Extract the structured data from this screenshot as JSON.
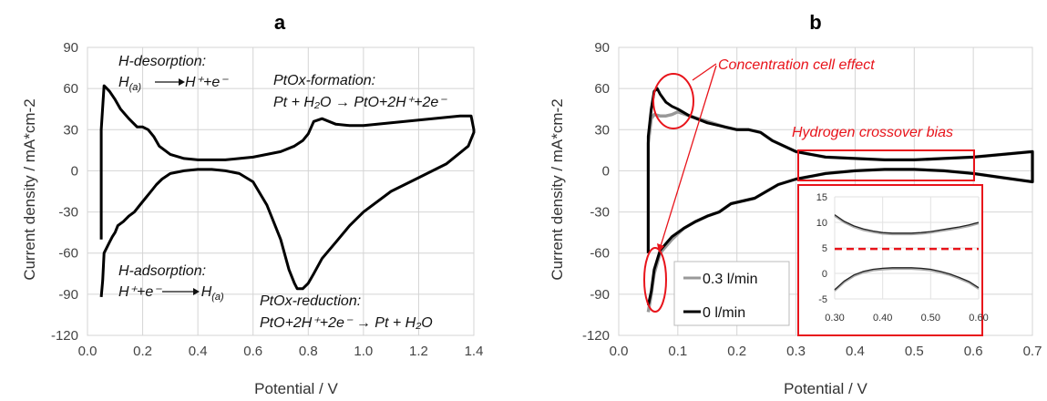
{
  "chart_data": [
    {
      "type": "line",
      "panel_label": "a",
      "xlabel": "Potential / V",
      "ylabel": "Current density / mA*cm-2",
      "xlim": [
        0.0,
        1.4
      ],
      "ylim": [
        -120,
        90
      ],
      "xticks": [
        "0.0",
        "0.2",
        "0.4",
        "0.6",
        "0.8",
        "1.0",
        "1.2",
        "1.4"
      ],
      "yticks": [
        "90",
        "60",
        "30",
        "0",
        "-30",
        "-60",
        "-90",
        "-120"
      ],
      "grid": true,
      "series": [
        {
          "color": "#000000",
          "x": [
            0.05,
            0.05,
            0.06,
            0.07,
            0.08,
            0.1,
            0.12,
            0.15,
            0.18,
            0.2,
            0.22,
            0.24,
            0.26,
            0.3,
            0.35,
            0.4,
            0.45,
            0.5,
            0.55,
            0.6,
            0.65,
            0.7,
            0.75,
            0.78,
            0.8,
            0.82,
            0.85,
            0.9,
            0.95,
            1.0,
            1.05,
            1.1,
            1.15,
            1.2,
            1.25,
            1.3,
            1.35,
            1.39,
            1.4,
            1.4,
            1.38,
            1.3,
            1.2,
            1.1,
            1.0,
            0.95,
            0.9,
            0.85,
            0.82,
            0.8,
            0.78,
            0.76,
            0.75,
            0.73,
            0.7,
            0.65,
            0.6,
            0.55,
            0.5,
            0.45,
            0.4,
            0.35,
            0.3,
            0.27,
            0.25,
            0.23,
            0.21,
            0.19,
            0.17,
            0.15,
            0.13,
            0.11,
            0.1,
            0.09,
            0.08,
            0.07,
            0.06,
            0.055,
            0.05
          ],
          "y": [
            -50,
            30,
            62,
            60,
            58,
            52,
            45,
            38,
            32,
            32,
            30,
            25,
            18,
            12,
            9,
            8,
            8,
            8,
            9,
            10,
            12,
            14,
            18,
            22,
            27,
            36,
            38,
            34,
            33,
            33,
            34,
            35,
            36,
            37,
            38,
            39,
            40,
            40,
            30,
            28,
            18,
            5,
            -5,
            -15,
            -30,
            -40,
            -52,
            -64,
            -75,
            -82,
            -86,
            -86,
            -82,
            -72,
            -50,
            -25,
            -8,
            -2,
            0,
            1,
            1,
            0,
            -2,
            -6,
            -10,
            -15,
            -20,
            -25,
            -30,
            -33,
            -37,
            -40,
            -45,
            -48,
            -52,
            -56,
            -60,
            -80,
            -92
          ]
        }
      ],
      "annotations": {
        "h_desorption_title": "H-desorption:",
        "h_desorption_eq_left": "H",
        "h_desorption_eq_sub": "(a)",
        "h_desorption_eq_right": "H⁺+e⁻",
        "ptox_formation_title": "PtOx-formation:",
        "ptox_formation_eq": "Pt + H₂O → PtO+2H⁺+2e⁻",
        "h_adsorption_title": "H-adsorption:",
        "h_adsorption_eq_left": "H⁺+e⁻",
        "h_adsorption_eq_right": "H",
        "h_adsorption_eq_sub": "(a)",
        "ptox_reduction_title": "PtOx-reduction:",
        "ptox_reduction_eq": "PtO+2H⁺+2e⁻ → Pt + H₂O"
      }
    },
    {
      "type": "line",
      "panel_label": "b",
      "xlabel": "Potential / V",
      "ylabel": "Current density / mA*cm-2",
      "xlim": [
        0.0,
        0.7
      ],
      "ylim": [
        -120,
        90
      ],
      "xticks": [
        "0.0",
        "0.1",
        "0.2",
        "0.3",
        "0.4",
        "0.5",
        "0.6",
        "0.7"
      ],
      "yticks": [
        "90",
        "60",
        "30",
        "0",
        "-30",
        "-60",
        "-90",
        "-120"
      ],
      "grid": true,
      "legend": "bottom-left",
      "series": [
        {
          "name": "0.3 l/min",
          "color": "#999999",
          "x": [
            0.05,
            0.05,
            0.055,
            0.06,
            0.07,
            0.08,
            0.09,
            0.1,
            0.12,
            0.15,
            0.18,
            0.2,
            0.22,
            0.24,
            0.26,
            0.3,
            0.35,
            0.4,
            0.45,
            0.5,
            0.55,
            0.6,
            0.65,
            0.7,
            0.7,
            0.65,
            0.6,
            0.55,
            0.5,
            0.45,
            0.4,
            0.35,
            0.3,
            0.27,
            0.25,
            0.23,
            0.21,
            0.19,
            0.17,
            0.15,
            0.13,
            0.11,
            0.1,
            0.09,
            0.08,
            0.07,
            0.06,
            0.055,
            0.05
          ],
          "y": [
            -60,
            20,
            38,
            41,
            40,
            40,
            41,
            43,
            40,
            36,
            32,
            30,
            30,
            28,
            22,
            14,
            10,
            9,
            8,
            8,
            9,
            10,
            12,
            14,
            -8,
            -5,
            -2,
            0,
            1,
            1,
            0,
            -2,
            -6,
            -10,
            -15,
            -20,
            -22,
            -24,
            -30,
            -33,
            -37,
            -42,
            -46,
            -50,
            -55,
            -60,
            -75,
            -90,
            -103
          ]
        },
        {
          "name": "0 l/min",
          "color": "#000000",
          "x": [
            0.05,
            0.05,
            0.055,
            0.06,
            0.065,
            0.07,
            0.08,
            0.09,
            0.1,
            0.12,
            0.15,
            0.18,
            0.2,
            0.22,
            0.24,
            0.26,
            0.3,
            0.35,
            0.4,
            0.45,
            0.5,
            0.55,
            0.6,
            0.65,
            0.7,
            0.7,
            0.65,
            0.6,
            0.55,
            0.5,
            0.45,
            0.4,
            0.35,
            0.3,
            0.27,
            0.25,
            0.23,
            0.21,
            0.19,
            0.17,
            0.15,
            0.13,
            0.11,
            0.1,
            0.09,
            0.08,
            0.07,
            0.06,
            0.055,
            0.05
          ],
          "y": [
            -60,
            25,
            45,
            58,
            60,
            56,
            50,
            47,
            45,
            40,
            35,
            32,
            30,
            30,
            28,
            22,
            14,
            10,
            9,
            8,
            8,
            9,
            10,
            12,
            14,
            -8,
            -5,
            -2,
            0,
            1,
            1,
            0,
            -2,
            -6,
            -10,
            -15,
            -20,
            -22,
            -24,
            -30,
            -33,
            -37,
            -42,
            -45,
            -48,
            -53,
            -58,
            -72,
            -88,
            -98
          ]
        }
      ],
      "annotations": {
        "concentration_label": "Concentration cell effect",
        "hydrogen_label": "Hydrogen crossover bias"
      },
      "inset": {
        "xlim": [
          0.3,
          0.6
        ],
        "ylim": [
          -5,
          15
        ],
        "xticks": [
          "0.30",
          "0.40",
          "0.50",
          "0.60"
        ],
        "yticks": [
          "15",
          "10",
          "5",
          "0",
          "-5"
        ],
        "dashed_line_y": 4.8,
        "upper_x": [
          0.3,
          0.32,
          0.34,
          0.36,
          0.38,
          0.4,
          0.42,
          0.44,
          0.46,
          0.48,
          0.5,
          0.52,
          0.54,
          0.56,
          0.58,
          0.6
        ],
        "upper_y": [
          11.5,
          10.2,
          9.3,
          8.7,
          8.3,
          8.0,
          7.9,
          7.9,
          7.9,
          8.0,
          8.2,
          8.5,
          8.8,
          9.1,
          9.5,
          10.0
        ],
        "lower_x": [
          0.3,
          0.32,
          0.34,
          0.36,
          0.38,
          0.4,
          0.42,
          0.44,
          0.46,
          0.48,
          0.5,
          0.52,
          0.54,
          0.56,
          0.58,
          0.6
        ],
        "lower_y": [
          -3.2,
          -1.5,
          -0.3,
          0.4,
          0.8,
          1.0,
          1.1,
          1.1,
          1.1,
          1.0,
          0.8,
          0.4,
          -0.1,
          -0.8,
          -1.6,
          -2.8
        ]
      }
    }
  ]
}
